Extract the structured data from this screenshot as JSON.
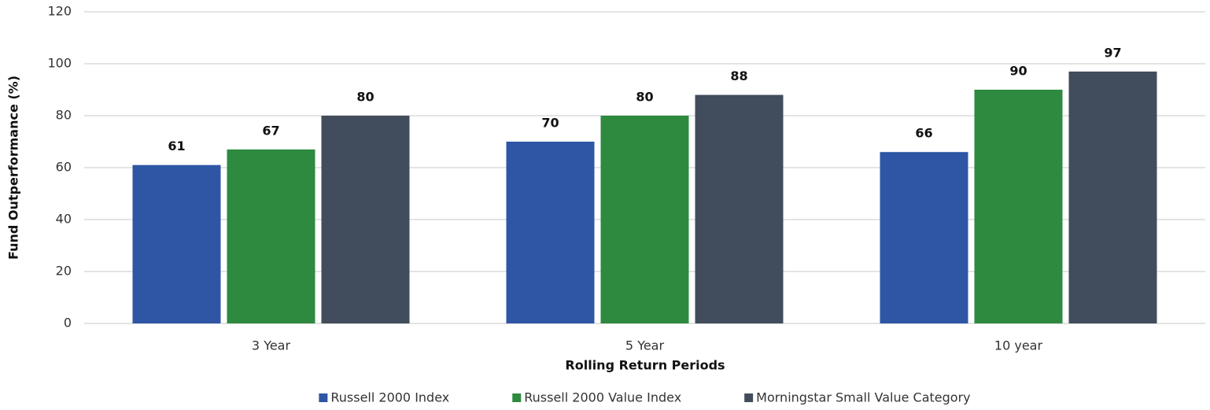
{
  "chart_data": {
    "type": "bar",
    "categories": [
      "3 Year",
      "5 Year",
      "10 year"
    ],
    "series": [
      {
        "name": "Russell 2000 Index",
        "color": "#2e56a5",
        "values": [
          61,
          70,
          66
        ]
      },
      {
        "name": "Russell 2000 Value Index",
        "color": "#2e8a3f",
        "values": [
          67,
          80,
          90
        ]
      },
      {
        "name": "Morningstar Small Value Category",
        "color": "#414d5c",
        "values": [
          80,
          88,
          97
        ]
      }
    ],
    "x_label": "Rolling Return Periods",
    "y_label": "Fund Outperformance (%)",
    "ylim": [
      0,
      120
    ],
    "yticks": [
      0,
      20,
      40,
      60,
      80,
      100,
      120
    ],
    "grid": true,
    "legend": "bottom"
  }
}
